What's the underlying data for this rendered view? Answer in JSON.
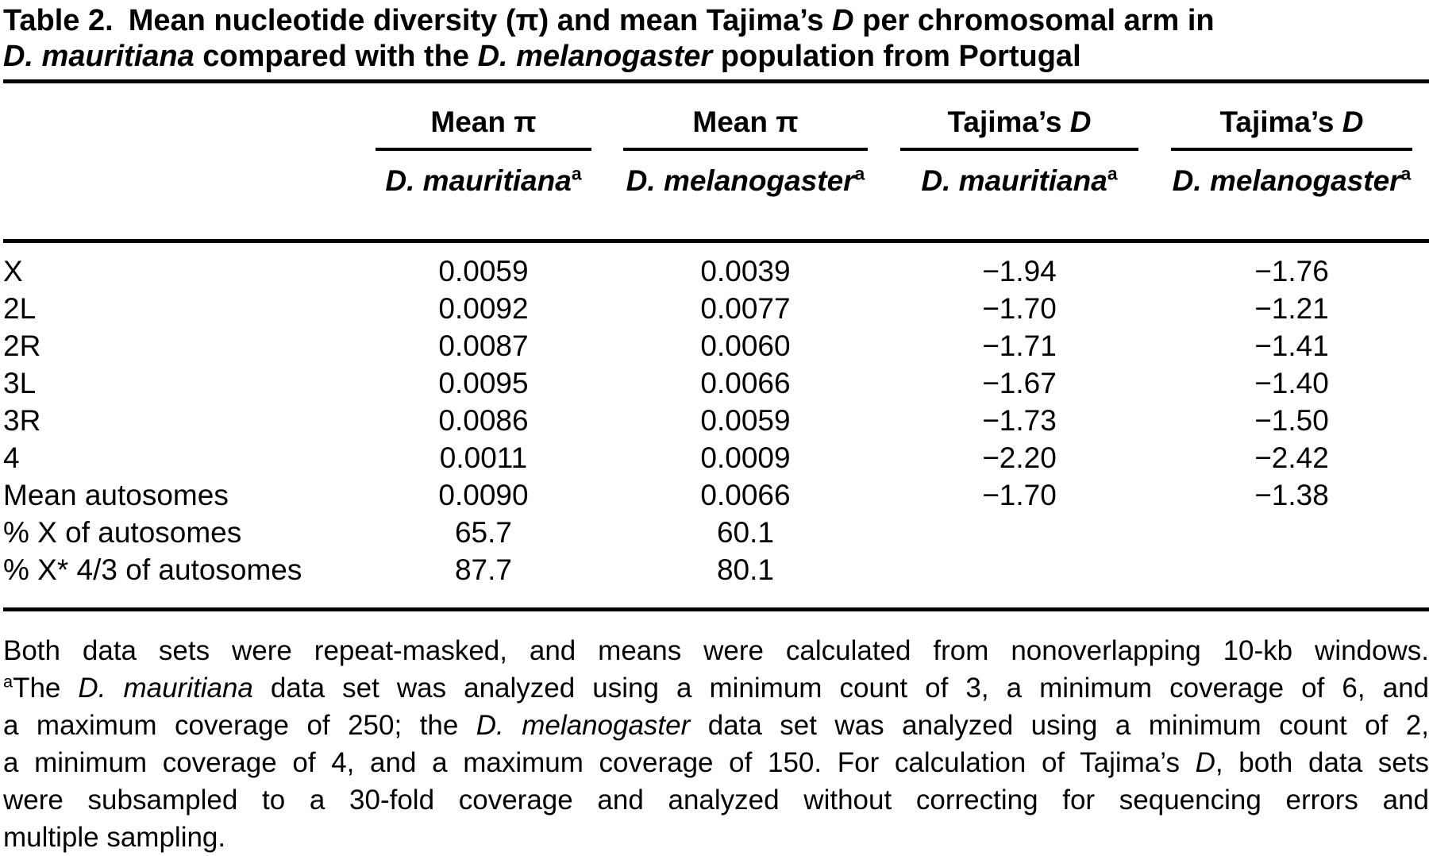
{
  "title": {
    "lines": [
      [
        {
          "t": "Table 2."
        },
        {
          "t": " Mean nucleotide diversity (π) and mean Tajima’s "
        },
        {
          "t": "D",
          "i": true
        },
        {
          "t": " per chromosomal arm in"
        }
      ],
      [
        {
          "t": "D. mauritiana",
          "i": true
        },
        {
          "t": " compared with the "
        },
        {
          "t": "D. melanogaster",
          "i": true
        },
        {
          "t": " population from Portugal"
        }
      ]
    ]
  },
  "table": {
    "columns": [
      {
        "group": [
          {
            "t": "Mean π"
          }
        ],
        "sub": [
          {
            "t": "D. mauritiana",
            "i": true
          },
          {
            "t": "a",
            "sup": true
          }
        ]
      },
      {
        "group": [
          {
            "t": "Mean π"
          }
        ],
        "sub": [
          {
            "t": "D. melanogaster",
            "i": true
          },
          {
            "t": "a",
            "sup": true
          }
        ]
      },
      {
        "group": [
          {
            "t": "Tajima’s "
          },
          {
            "t": "D",
            "i": true
          }
        ],
        "sub": [
          {
            "t": "D. mauritiana",
            "i": true
          },
          {
            "t": "a",
            "sup": true
          }
        ]
      },
      {
        "group": [
          {
            "t": "Tajima’s "
          },
          {
            "t": "D",
            "i": true
          }
        ],
        "sub": [
          {
            "t": "D. melanogaster",
            "i": true
          },
          {
            "t": "a",
            "sup": true
          }
        ]
      }
    ],
    "rows": [
      {
        "label": "X",
        "values": [
          "0.0059",
          "0.0039",
          "−1.94",
          "−1.76"
        ]
      },
      {
        "label": "2L",
        "values": [
          "0.0092",
          "0.0077",
          "−1.70",
          "−1.21"
        ]
      },
      {
        "label": "2R",
        "values": [
          "0.0087",
          "0.0060",
          "−1.71",
          "−1.41"
        ]
      },
      {
        "label": "3L",
        "values": [
          "0.0095",
          "0.0066",
          "−1.67",
          "−1.40"
        ]
      },
      {
        "label": "3R",
        "values": [
          "0.0086",
          "0.0059",
          "−1.73",
          "−1.50"
        ]
      },
      {
        "label": "4",
        "values": [
          "0.0011",
          "0.0009",
          "−2.20",
          "−2.42"
        ]
      },
      {
        "label": "Mean autosomes",
        "values": [
          "0.0090",
          "0.0066",
          "−1.70",
          "−1.38"
        ]
      },
      {
        "label": "% X of autosomes",
        "values": [
          "65.7",
          "60.1",
          "",
          ""
        ]
      },
      {
        "label": "% X* 4/3 of autosomes",
        "values": [
          "87.7",
          "80.1",
          "",
          ""
        ]
      }
    ]
  },
  "footnote": {
    "lines": [
      [
        {
          "t": "Both data sets were repeat-masked, and means were calculated from nonoverlapping 10-kb windows."
        }
      ],
      [
        {
          "t": "a",
          "sup": true
        },
        {
          "t": "The "
        },
        {
          "t": "D. mauritiana",
          "i": true
        },
        {
          "t": " data set was analyzed using a minimum count of 3, a minimum coverage of 6, and"
        }
      ],
      [
        {
          "t": "a maximum coverage of 250; the "
        },
        {
          "t": "D. melanogaster",
          "i": true
        },
        {
          "t": " data set was analyzed using a minimum count of 2,"
        }
      ],
      [
        {
          "t": "a minimum coverage of 4, and a maximum coverage of 150. For calculation of Tajima’s "
        },
        {
          "t": "D",
          "i": true
        },
        {
          "t": ", both data sets"
        }
      ],
      [
        {
          "t": "were subsampled to a 30-fold coverage and analyzed without correcting for sequencing errors and"
        }
      ],
      [
        {
          "t": "multiple sampling."
        }
      ]
    ]
  }
}
